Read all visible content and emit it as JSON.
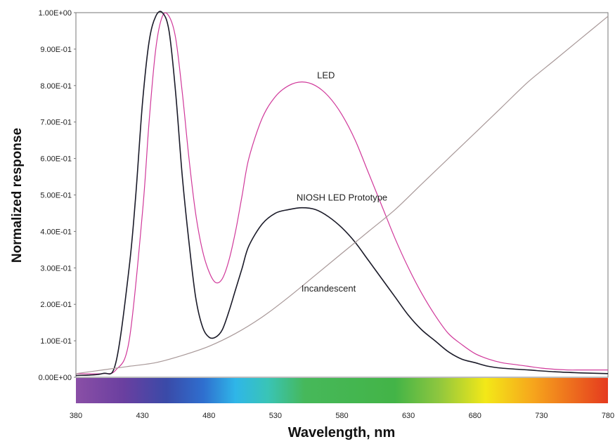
{
  "chart_data": {
    "type": "line",
    "title": "",
    "xlabel": "Wavelength, nm",
    "ylabel": "Normalized response",
    "xlim": [
      380,
      780
    ],
    "ylim": [
      0,
      1
    ],
    "x_ticks": [
      "380",
      "430",
      "480",
      "530",
      "580",
      "630",
      "680",
      "730",
      "780"
    ],
    "y_ticks": [
      "0.00E+00",
      "1.00E-01",
      "2.00E-01",
      "3.00E-01",
      "4.00E-01",
      "5.00E-01",
      "6.00E-01",
      "7.00E-01",
      "8.00E-01",
      "9.00E-01",
      "1.00E+00"
    ],
    "grid": false,
    "legend": "none",
    "spectrum_bar": true,
    "annotations": [
      {
        "text": "LED",
        "x": 568,
        "y": 0.82
      },
      {
        "text": "NIOSH LED Prototype",
        "x": 580,
        "y": 0.485
      },
      {
        "text": "Incandescent",
        "x": 570,
        "y": 0.235
      }
    ],
    "series": [
      {
        "label": "LED",
        "color": "#d0389a",
        "x": [
          380,
          400,
          410,
          420,
          430,
          435,
          440,
          445,
          450,
          455,
          460,
          465,
          470,
          475,
          480,
          485,
          490,
          495,
          500,
          505,
          510,
          520,
          530,
          540,
          550,
          560,
          570,
          580,
          590,
          600,
          610,
          620,
          630,
          640,
          650,
          660,
          670,
          680,
          690,
          700,
          710,
          720,
          730,
          740,
          750,
          760,
          770,
          780
        ],
        "y": [
          0.01,
          0.01,
          0.02,
          0.1,
          0.45,
          0.7,
          0.9,
          0.99,
          0.99,
          0.93,
          0.78,
          0.6,
          0.45,
          0.35,
          0.29,
          0.26,
          0.27,
          0.32,
          0.4,
          0.5,
          0.6,
          0.71,
          0.77,
          0.8,
          0.81,
          0.8,
          0.77,
          0.72,
          0.65,
          0.56,
          0.47,
          0.38,
          0.3,
          0.23,
          0.17,
          0.12,
          0.09,
          0.065,
          0.05,
          0.04,
          0.035,
          0.03,
          0.025,
          0.022,
          0.02,
          0.02,
          0.02,
          0.02
        ]
      },
      {
        "label": "NIOSH LED Prototype",
        "color": "#1a1a28",
        "x": [
          380,
          400,
          410,
          420,
          425,
          430,
          435,
          440,
          445,
          450,
          455,
          460,
          465,
          470,
          475,
          480,
          485,
          490,
          495,
          500,
          505,
          510,
          520,
          530,
          540,
          550,
          560,
          570,
          580,
          590,
          600,
          610,
          620,
          630,
          640,
          650,
          660,
          670,
          680,
          690,
          700,
          720,
          740,
          760,
          780
        ],
        "y": [
          0.005,
          0.01,
          0.04,
          0.3,
          0.5,
          0.75,
          0.92,
          0.99,
          1.0,
          0.95,
          0.78,
          0.55,
          0.37,
          0.22,
          0.14,
          0.11,
          0.11,
          0.13,
          0.18,
          0.24,
          0.3,
          0.36,
          0.42,
          0.45,
          0.46,
          0.465,
          0.46,
          0.44,
          0.41,
          0.37,
          0.32,
          0.27,
          0.22,
          0.17,
          0.13,
          0.1,
          0.07,
          0.05,
          0.04,
          0.03,
          0.025,
          0.02,
          0.015,
          0.012,
          0.01
        ]
      },
      {
        "label": "Incandescent",
        "color": "#a89898",
        "x": [
          380,
          400,
          420,
          440,
          460,
          480,
          500,
          520,
          540,
          560,
          580,
          600,
          620,
          640,
          660,
          680,
          700,
          720,
          740,
          760,
          780
        ],
        "y": [
          0.01,
          0.02,
          0.03,
          0.04,
          0.06,
          0.085,
          0.12,
          0.165,
          0.22,
          0.28,
          0.34,
          0.4,
          0.46,
          0.53,
          0.6,
          0.67,
          0.74,
          0.81,
          0.87,
          0.93,
          0.99
        ]
      }
    ]
  }
}
